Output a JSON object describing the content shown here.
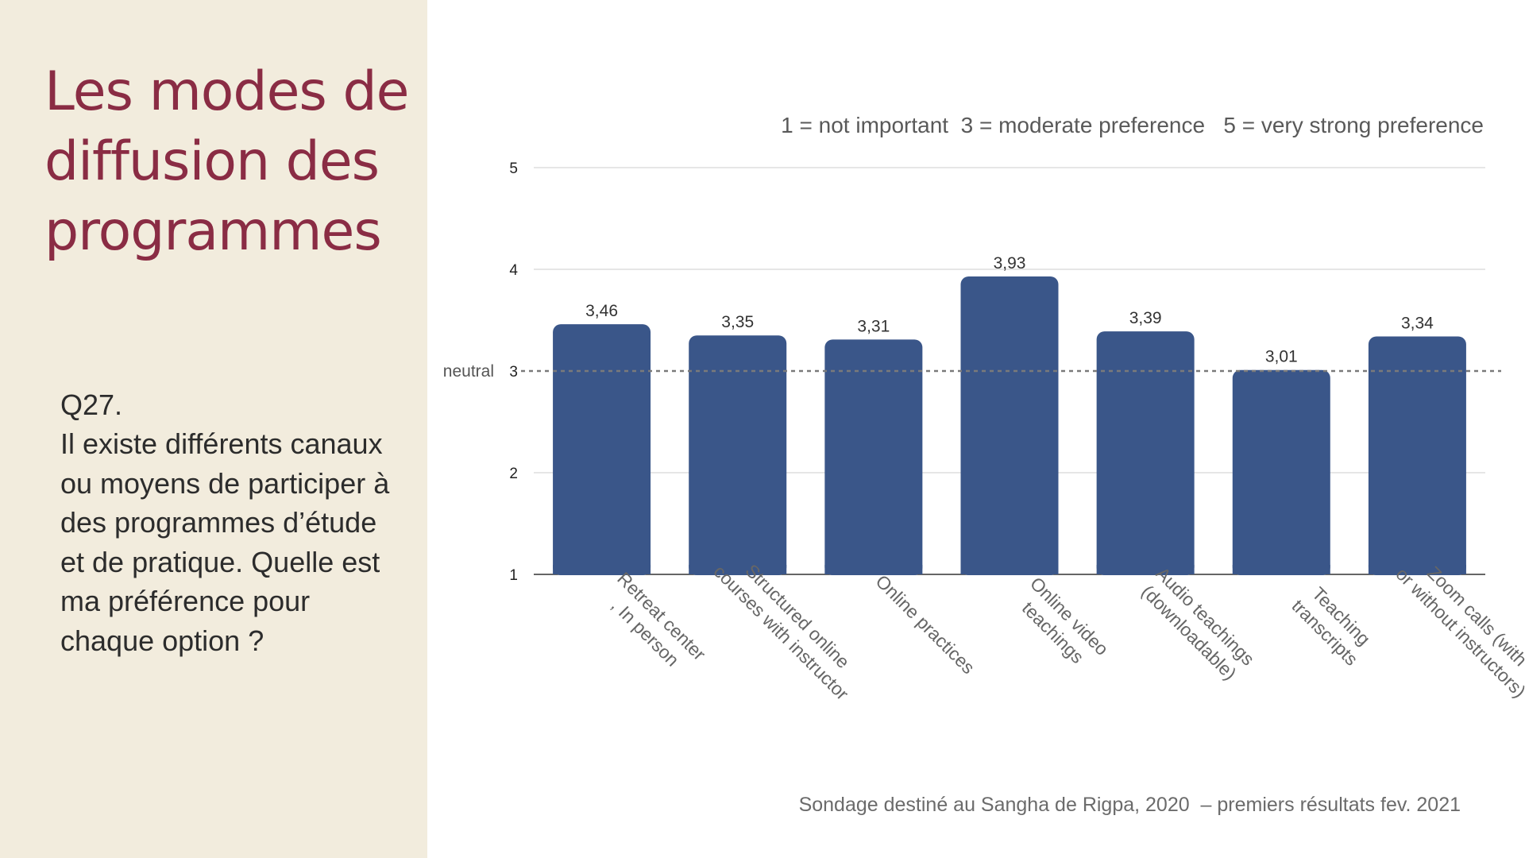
{
  "slide": {
    "title": "Les modes de diffusion des programmes",
    "question_number": "Q27.",
    "question_text": "Il existe différents canaux ou moyens de participer à des programmes d’étude et de pratique. Quelle est ma préférence pour chaque option ?",
    "scale_legend": "1 = not important  3 = moderate preference   5 = very strong preference",
    "source": "Sondage destiné au Sangha de Rigpa, 2020  – premiers résultats fev. 2021"
  },
  "chart_data": {
    "type": "bar",
    "categories": [
      [
        "Retreat center",
        ", In person"
      ],
      [
        "Structured online",
        "courses with instructor"
      ],
      [
        "Online practices"
      ],
      [
        "Online video",
        "teachings"
      ],
      [
        "Audio teachings",
        "(downloadable)"
      ],
      [
        "Teaching",
        "transcripts"
      ],
      [
        "Zoom calls (with",
        "or without instructors)"
      ]
    ],
    "values": [
      3.46,
      3.35,
      3.31,
      3.93,
      3.39,
      3.01,
      3.34
    ],
    "value_labels": [
      "3,46",
      "3,35",
      "3,31",
      "3,93",
      "3,39",
      "3,01",
      "3,34"
    ],
    "ylim": [
      1,
      5
    ],
    "yticks": [
      1,
      2,
      3,
      4,
      5
    ],
    "reference_line": {
      "value": 3,
      "label": "neutral",
      "style": "dashed"
    },
    "grid": true,
    "bar_color": "#3a5689"
  }
}
